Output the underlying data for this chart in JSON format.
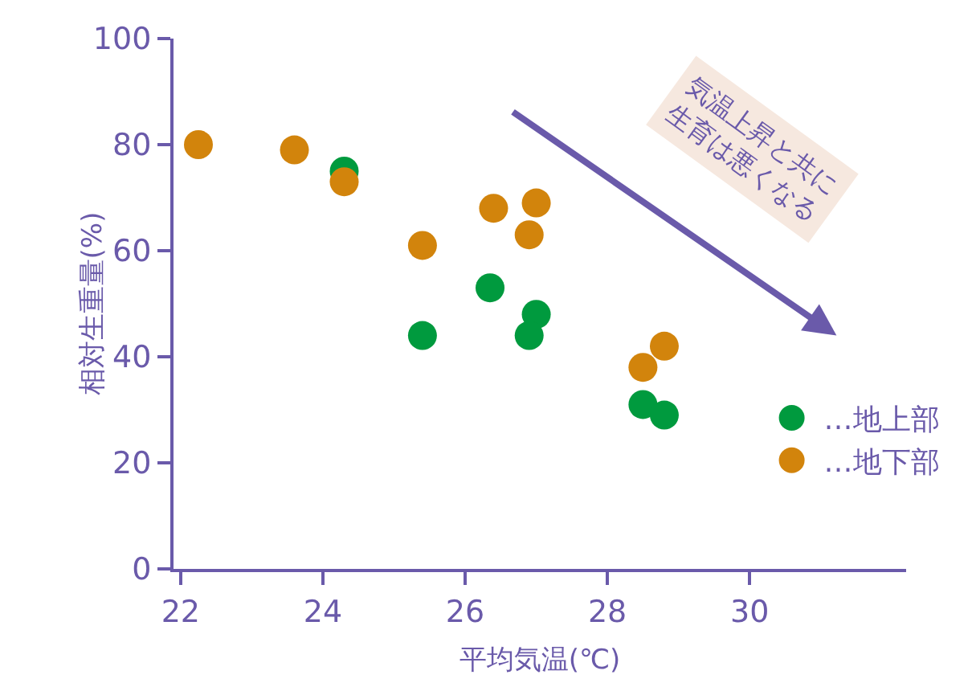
{
  "chart_data": {
    "type": "scatter",
    "xlabel": "平均気温(℃)",
    "ylabel": "相対生重量(%)",
    "annotations": [
      "気温上昇と共に\n生育は悪くなる"
    ],
    "series": [
      {
        "name": "…地上部",
        "color": "#009a3e",
        "x": [
          24.3,
          25.4,
          26.35,
          27.0,
          26.9,
          28.5,
          28.8
        ],
        "values": [
          75,
          44,
          53,
          48,
          44,
          31,
          29
        ]
      },
      {
        "name": "…地下部",
        "color": "#d2840c",
        "x": [
          22.25,
          23.6,
          24.3,
          25.4,
          26.4,
          27.0,
          26.9,
          28.5,
          28.8
        ],
        "values": [
          80,
          79,
          73,
          61,
          68,
          69,
          63,
          38,
          42
        ]
      }
    ],
    "xlim": [
      21.9,
      32.2
    ],
    "xticks": [
      22,
      24,
      26,
      28,
      30
    ],
    "ylim": [
      0,
      100
    ],
    "yticks": [
      0,
      20,
      40,
      60,
      80,
      100
    ],
    "grid": false,
    "legend": "right",
    "marker": "circle"
  }
}
